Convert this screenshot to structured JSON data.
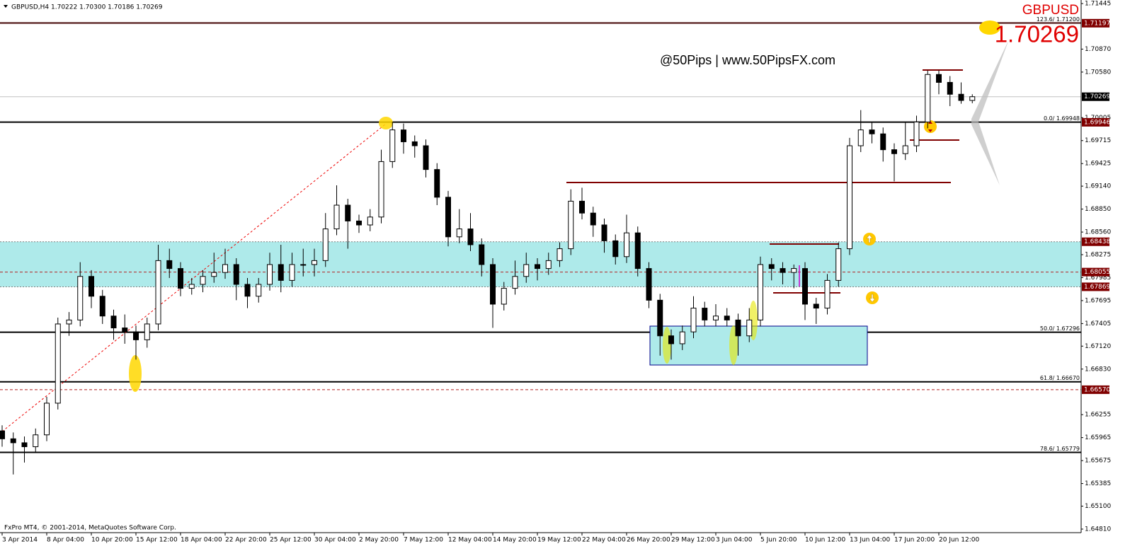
{
  "chart_data": {
    "type": "candlestick",
    "header": "GBPUSD,H4  1.70222 1.70300 1.70186 1.70269",
    "footer": "FxPro MT4, © 2001-2014, MetaQuotes Software Corp.",
    "watermark": "@50Pips | www.50PipsFX.com",
    "symbol": "GBPUSD",
    "big_price": "1.70269",
    "categories": [
      "3 Apr 2014",
      null,
      null,
      null,
      "8 Apr 04:00",
      null,
      null,
      null,
      "10 Apr 20:00",
      null,
      null,
      null,
      "15 Apr 12:00",
      null,
      null,
      null,
      "18 Apr 04:00",
      null,
      null,
      null,
      "22 Apr 20:00",
      null,
      null,
      null,
      "25 Apr 12:00",
      null,
      null,
      null,
      "30 Apr 04:00",
      null,
      null,
      null,
      "2 May 20:00",
      null,
      null,
      null,
      "7 May 12:00",
      null,
      null,
      null,
      "12 May 04:00",
      null,
      null,
      null,
      "14 May 20:00",
      null,
      null,
      null,
      "19 May 12:00",
      null,
      null,
      null,
      "22 May 04:00",
      null,
      null,
      null,
      "26 May 20:00",
      null,
      null,
      null,
      "29 May 12:00",
      null,
      null,
      null,
      "3 Jun 04:00",
      null,
      null,
      null,
      "5 Jun 20:00",
      null,
      null,
      null,
      "10 Jun 12:00",
      null,
      null,
      null,
      "13 Jun 04:00",
      null,
      null,
      null,
      "17 Jun 20:00",
      null,
      null,
      null,
      "20 Jun 12:00",
      null,
      null,
      null
    ],
    "open": [
      1.6605,
      1.6595,
      1.659,
      1.6585,
      1.66,
      1.664,
      1.674,
      1.6745,
      1.68,
      1.6775,
      1.675,
      1.6735,
      1.673,
      1.672,
      1.674,
      1.682,
      1.681,
      1.6785,
      1.679,
      1.68,
      1.6805,
      1.6815,
      1.679,
      1.6775,
      1.679,
      1.6815,
      1.6795,
      1.6815,
      1.6815,
      1.682,
      1.686,
      1.689,
      1.687,
      1.6865,
      1.6875,
      1.6945,
      1.6985,
      1.697,
      1.6965,
      1.6935,
      1.69,
      1.685,
      1.686,
      1.684,
      1.6815,
      1.6765,
      1.6785,
      1.68,
      1.6815,
      1.681,
      1.682,
      1.6835,
      1.6895,
      1.688,
      1.6865,
      1.6845,
      1.6825,
      1.6855,
      1.681,
      1.677,
      1.6725,
      1.6715,
      1.673,
      1.676,
      1.6745,
      1.675,
      1.6745,
      1.6725,
      1.6745,
      1.6815,
      1.681,
      1.6805,
      1.681,
      1.6765,
      1.676,
      1.6795,
      1.6835,
      1.6965,
      1.6985,
      1.698,
      1.696,
      1.6955,
      1.6965,
      1.6995,
      1.7055,
      1.7045,
      1.703,
      1.70222
    ],
    "high": [
      1.6612,
      1.6603,
      1.6598,
      1.6608,
      1.6648,
      1.6748,
      1.6755,
      1.6818,
      1.6808,
      1.6783,
      1.6758,
      1.6752,
      1.6738,
      1.6748,
      1.684,
      1.6835,
      1.6818,
      1.6798,
      1.6808,
      1.683,
      1.6835,
      1.6823,
      1.6798,
      1.6798,
      1.683,
      1.684,
      1.683,
      1.6835,
      1.6835,
      1.688,
      1.6915,
      1.6898,
      1.6878,
      1.6885,
      1.696,
      1.6995,
      1.6993,
      1.6978,
      1.6973,
      1.6943,
      1.6908,
      1.6885,
      1.688,
      1.6848,
      1.6823,
      1.6793,
      1.682,
      1.683,
      1.6823,
      1.683,
      1.6843,
      1.691,
      1.6912,
      1.6888,
      1.6873,
      1.6853,
      1.6878,
      1.6863,
      1.6818,
      1.6778,
      1.6733,
      1.6738,
      1.6775,
      1.6768,
      1.6765,
      1.676,
      1.6753,
      1.676,
      1.6825,
      1.6823,
      1.6818,
      1.6815,
      1.6818,
      1.6773,
      1.6803,
      1.6843,
      1.6975,
      1.701,
      1.6995,
      1.6988,
      1.6968,
      1.6995,
      1.7003,
      1.706,
      1.706,
      1.7053,
      1.7045,
      1.703
    ],
    "low": [
      1.6585,
      1.655,
      1.6565,
      1.6577,
      1.6592,
      1.6632,
      1.6725,
      1.6737,
      1.676,
      1.674,
      1.672,
      1.6715,
      1.6695,
      1.671,
      1.6732,
      1.6798,
      1.6775,
      1.6777,
      1.678,
      1.6792,
      1.6797,
      1.677,
      1.676,
      1.6767,
      1.6782,
      1.678,
      1.6787,
      1.68,
      1.68,
      1.6812,
      1.6852,
      1.6835,
      1.6855,
      1.6857,
      1.6867,
      1.6937,
      1.6955,
      1.695,
      1.6925,
      1.689,
      1.6838,
      1.6842,
      1.6832,
      1.68,
      1.6735,
      1.6757,
      1.6777,
      1.6792,
      1.6795,
      1.6802,
      1.6812,
      1.6827,
      1.6872,
      1.685,
      1.683,
      1.6815,
      1.6817,
      1.68,
      1.676,
      1.67,
      1.6695,
      1.6707,
      1.6722,
      1.6737,
      1.6737,
      1.6737,
      1.67,
      1.6717,
      1.6737,
      1.6795,
      1.679,
      1.6785,
      1.6745,
      1.674,
      1.6752,
      1.6787,
      1.6827,
      1.6957,
      1.6968,
      1.6945,
      1.692,
      1.6947,
      1.6957,
      1.6987,
      1.703,
      1.7015,
      1.7018,
      1.70186
    ],
    "close": [
      1.6595,
      1.659,
      1.6585,
      1.66,
      1.664,
      1.674,
      1.6745,
      1.68,
      1.6775,
      1.675,
      1.6735,
      1.673,
      1.672,
      1.674,
      1.682,
      1.681,
      1.6785,
      1.679,
      1.68,
      1.6805,
      1.6815,
      1.679,
      1.6775,
      1.679,
      1.6815,
      1.6795,
      1.6815,
      1.6815,
      1.682,
      1.686,
      1.689,
      1.687,
      1.6865,
      1.6875,
      1.6945,
      1.6985,
      1.697,
      1.6965,
      1.6935,
      1.69,
      1.685,
      1.686,
      1.684,
      1.6815,
      1.6765,
      1.6785,
      1.68,
      1.6815,
      1.681,
      1.682,
      1.6835,
      1.6895,
      1.688,
      1.6865,
      1.6845,
      1.6825,
      1.6855,
      1.681,
      1.677,
      1.6725,
      1.6715,
      1.673,
      1.676,
      1.6745,
      1.675,
      1.6745,
      1.6725,
      1.6745,
      1.6815,
      1.681,
      1.6805,
      1.681,
      1.6765,
      1.676,
      1.6795,
      1.6835,
      1.6965,
      1.6985,
      1.698,
      1.696,
      1.6955,
      1.6965,
      1.6995,
      1.7055,
      1.7045,
      1.703,
      1.70222,
      1.70269
    ],
    "ylim": [
      1.64774,
      1.7149
    ],
    "yticks": [
      1.71445,
      {
        "value": 1.7087,
        "label": "1.70870"
      },
      {
        "value": 1.7058,
        "label": "1.70580"
      },
      {
        "value": 1.70005,
        "label": "1.70005"
      },
      1.69715,
      1.69425,
      {
        "value": 1.6914,
        "label": "1.69140"
      },
      {
        "value": 1.6885,
        "label": "1.68850"
      },
      {
        "value": 1.6856,
        "label": "1.68560"
      },
      1.68275,
      1.67985,
      1.67695,
      1.67405,
      {
        "value": 1.6712,
        "label": "1.67120"
      },
      {
        "value": 1.6683,
        "label": "1.66830"
      },
      1.66255,
      1.65965,
      1.65675,
      1.65385,
      {
        "value": 1.651,
        "label": "1.65100"
      },
      {
        "value": 1.6481,
        "label": "1.64810"
      }
    ],
    "zone": {
      "from": 1.67869,
      "to": 1.68438,
      "color": "#aeeaea"
    },
    "price_labels": [
      {
        "value": 1.71197,
        "color": "#800000",
        "line": "none"
      },
      {
        "value": 1.70269,
        "color": "#000000",
        "line": "solid-gray"
      },
      {
        "value": 1.69946,
        "color": "#800000",
        "line": "none"
      },
      {
        "value": 1.68438,
        "color": "#800000",
        "line": "dotted"
      },
      {
        "value": 1.68055,
        "color": "#800000",
        "line": "dashed-red"
      },
      {
        "value": 1.67869,
        "color": "#800000",
        "line": "dotted"
      },
      {
        "value": 1.6657,
        "label": "1.66570",
        "color": "#800000",
        "line": "dashed-red"
      }
    ],
    "fib_levels": [
      {
        "value": 1.712,
        "label": "123.6/ 1.71200"
      },
      {
        "value": 1.69948,
        "label": "0.0/ 1.69948"
      },
      {
        "value": 1.67296,
        "label": "50.0/ 1.67296"
      },
      {
        "value": 1.6667,
        "label": "61.8/ 1.66670"
      },
      {
        "value": 1.65779,
        "label": "78.6/ 1.65779"
      }
    ],
    "bull_color": "#ffffff",
    "bear_color": "#000000"
  }
}
